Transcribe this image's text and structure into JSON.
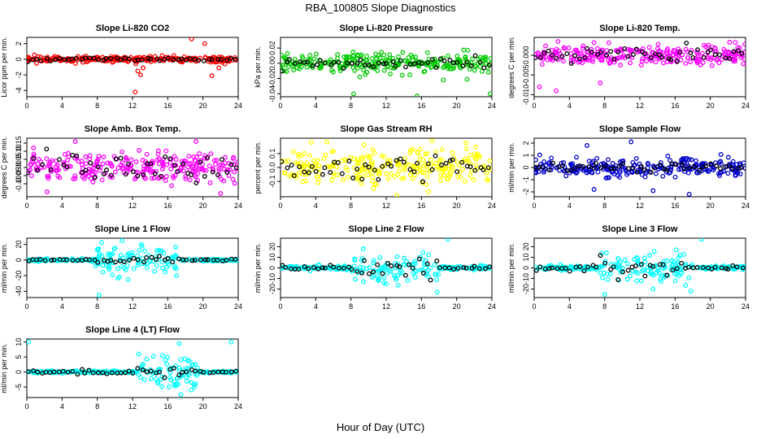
{
  "title": "RBA_100805  Slope Diagnostics",
  "xlabel": "Hour of Day (UTC)",
  "chart_data": [
    {
      "type": "scatter",
      "title": "Slope Li-820 CO2",
      "ylabel": "Licor ppm per min.",
      "xlim": [
        0,
        24
      ],
      "ylim": [
        -4.8,
        2.8
      ],
      "xticks": [
        0,
        4,
        8,
        12,
        16,
        20,
        24
      ],
      "yticks": [
        -4,
        -2,
        0,
        2
      ],
      "ytick_labels": [
        "-4",
        "-2",
        "0",
        "2"
      ],
      "color": "#ff0000",
      "spread": 0.28,
      "outliers": [
        {
          "x": 12.3,
          "y": -4.2
        },
        {
          "x": 12.9,
          "y": -2.0
        },
        {
          "x": 18.7,
          "y": 2.6
        },
        {
          "x": 20.2,
          "y": 2.0
        },
        {
          "x": 21.0,
          "y": -2.1
        },
        {
          "x": 21.8,
          "y": -1.1
        },
        {
          "x": 22.5,
          "y": -0.6
        },
        {
          "x": 12.6,
          "y": -1.5
        },
        {
          "x": 13.2,
          "y": -1.1
        }
      ],
      "black_spread": 0.12
    },
    {
      "type": "scatter",
      "title": "Slope Li-820 Pressure",
      "ylabel": "kPa per min.",
      "xlim": [
        0,
        24
      ],
      "ylim": [
        -0.044,
        0.034
      ],
      "xticks": [
        0,
        4,
        8,
        12,
        16,
        20,
        24
      ],
      "yticks": [
        -0.04,
        -0.02,
        0.0,
        0.02
      ],
      "ytick_labels": [
        "-0.04",
        "-0.02",
        "0.00",
        "0.02"
      ],
      "color": "#00cc00",
      "spread": 0.009,
      "outliers": [
        {
          "x": 8.3,
          "y": -0.04
        },
        {
          "x": 15.5,
          "y": -0.043
        },
        {
          "x": 23.8,
          "y": -0.04
        },
        {
          "x": 18.5,
          "y": -0.022
        },
        {
          "x": 9.0,
          "y": -0.018
        }
      ],
      "black_spread": 0.004
    },
    {
      "type": "scatter",
      "title": "Slope Li-820 Temp.",
      "ylabel": "degrees C per min.",
      "xlim": [
        0,
        24
      ],
      "ylim": [
        -0.0105,
        0.0045
      ],
      "xticks": [
        0,
        4,
        8,
        12,
        16,
        20,
        24
      ],
      "yticks": [
        -0.01,
        -0.005,
        0.0
      ],
      "ytick_labels": [
        "-0.010",
        "-0.005",
        "0.000"
      ],
      "color": "#ff00ff",
      "spread": 0.0018,
      "outliers": [
        {
          "x": 2.5,
          "y": -0.009
        },
        {
          "x": 0.6,
          "y": -0.008
        },
        {
          "x": 7.5,
          "y": -0.007
        },
        {
          "x": 19.3,
          "y": 0.0025
        },
        {
          "x": 20.2,
          "y": 0.002
        }
      ],
      "black_spread": 0.001
    },
    {
      "type": "scatter",
      "title": "Slope Amb. Box Temp.",
      "ylabel": "degrees C per min.",
      "xlim": [
        0,
        24
      ],
      "ylim": [
        -0.18,
        0.18
      ],
      "xticks": [
        0,
        4,
        8,
        12,
        16,
        20,
        24
      ],
      "yticks": [
        -0.1,
        -0.05,
        0.0,
        0.05,
        0.1,
        0.15
      ],
      "ytick_labels": [
        "-0.10",
        "-0.05",
        "0.00",
        "0.05",
        "0.10",
        "0.15"
      ],
      "color": "#ff00ff",
      "spread": 0.06,
      "outliers": [
        {
          "x": 5.5,
          "y": 0.16
        },
        {
          "x": 19.2,
          "y": 0.16
        },
        {
          "x": 22.0,
          "y": -0.16
        },
        {
          "x": 2.3,
          "y": -0.15
        }
      ],
      "black_spread": 0.05
    },
    {
      "type": "scatter",
      "title": "Slope Gas Stream RH",
      "ylabel": "percent per min.",
      "xlim": [
        0,
        24
      ],
      "ylim": [
        -0.21,
        0.21
      ],
      "xticks": [
        0,
        4,
        8,
        12,
        16,
        20,
        24
      ],
      "yticks": [
        -0.1,
        0.0,
        0.1
      ],
      "ytick_labels": [
        "-0.1",
        "0.0",
        "0.1"
      ],
      "color": "#ffff00",
      "spread": 0.08,
      "outliers": [
        {
          "x": 3.5,
          "y": 0.18
        },
        {
          "x": 13.2,
          "y": -0.2
        },
        {
          "x": 17.2,
          "y": 0.19
        }
      ],
      "black_spread": 0.045
    },
    {
      "type": "scatter",
      "title": "Slope Sample Flow",
      "ylabel": "ml/min per min.",
      "xlim": [
        0,
        24
      ],
      "ylim": [
        -2.4,
        2.4
      ],
      "xticks": [
        0,
        4,
        8,
        12,
        16,
        20,
        24
      ],
      "yticks": [
        -2,
        -1,
        0,
        1,
        2
      ],
      "ytick_labels": [
        "-2",
        "-1",
        "0",
        "1",
        "2"
      ],
      "color": "#0000cc",
      "spread": 0.55,
      "outliers": [
        {
          "x": 6.8,
          "y": -1.8
        },
        {
          "x": 11.0,
          "y": 2.1
        },
        {
          "x": 17.6,
          "y": -2.2
        },
        {
          "x": 13.5,
          "y": -1.9
        },
        {
          "x": 6.0,
          "y": 1.8
        }
      ],
      "black_spread": 0.2
    },
    {
      "type": "scatter",
      "title": "Slope Line 1 Flow",
      "ylabel": "ml/min per min.",
      "xlim": [
        0,
        24
      ],
      "ylim": [
        -48,
        28
      ],
      "xticks": [
        0,
        4,
        8,
        12,
        16,
        20,
        24
      ],
      "yticks": [
        -40,
        -20,
        0,
        20
      ],
      "ytick_labels": [
        "-40",
        "-20",
        "0",
        "20"
      ],
      "color": "#00ffff",
      "spread": 1.0,
      "burst": [
        7.8,
        17.5,
        12
      ],
      "outliers": [
        {
          "x": 8.2,
          "y": -45
        },
        {
          "x": 11.5,
          "y": -25
        },
        {
          "x": 10.8,
          "y": 25
        },
        {
          "x": 17.0,
          "y": -20
        },
        {
          "x": 13.0,
          "y": 20
        }
      ],
      "black_spread": 0.6
    },
    {
      "type": "scatter",
      "title": "Slope Line 2 Flow",
      "ylabel": "ml/min per min.",
      "xlim": [
        0,
        24
      ],
      "ylim": [
        -28,
        28
      ],
      "xticks": [
        0,
        4,
        8,
        12,
        16,
        20,
        24
      ],
      "yticks": [
        -20,
        -10,
        0,
        10,
        20
      ],
      "ytick_labels": [
        "-20",
        "-10",
        "0",
        "10",
        "20"
      ],
      "color": "#00ffff",
      "spread": 1.2,
      "burst": [
        8.0,
        18.0,
        9
      ],
      "outliers": [
        {
          "x": 17.8,
          "y": -23
        },
        {
          "x": 19.0,
          "y": 27
        },
        {
          "x": 9.4,
          "y": 18
        },
        {
          "x": 12.0,
          "y": -15
        }
      ],
      "black_spread": 1.0
    },
    {
      "type": "scatter",
      "title": "Slope Line 3 Flow",
      "ylabel": "ml/min per min.",
      "xlim": [
        0,
        24
      ],
      "ylim": [
        -28,
        28
      ],
      "xticks": [
        0,
        4,
        8,
        12,
        16,
        20,
        24
      ],
      "yticks": [
        -20,
        -10,
        0,
        10,
        20
      ],
      "ytick_labels": [
        "-20",
        "-10",
        "0",
        "10",
        "20"
      ],
      "color": "#00ffff",
      "spread": 1.2,
      "burst": [
        7.5,
        18.5,
        10
      ],
      "outliers": [
        {
          "x": 19.0,
          "y": 27
        },
        {
          "x": 17.8,
          "y": -22
        },
        {
          "x": 8.0,
          "y": -25
        },
        {
          "x": 13.5,
          "y": -20
        }
      ],
      "black_spread": 1.2
    },
    {
      "type": "scatter",
      "title": "Slope Line 4 (LT) Flow",
      "ylabel": "ml/min per min.",
      "xlim": [
        0,
        24
      ],
      "ylim": [
        -8.5,
        11
      ],
      "xticks": [
        0,
        4,
        8,
        12,
        16,
        20,
        24
      ],
      "yticks": [
        -5,
        0,
        5,
        10
      ],
      "ytick_labels": [
        "-5",
        "0",
        "5",
        "10"
      ],
      "color": "#00ffff",
      "spread": 0.25,
      "burst": [
        12.5,
        19.5,
        3.5
      ],
      "outliers": [
        {
          "x": 0.2,
          "y": 10
        },
        {
          "x": 17.3,
          "y": 9.5
        },
        {
          "x": 23.2,
          "y": 10
        },
        {
          "x": 17.5,
          "y": -7.5
        },
        {
          "x": 15.4,
          "y": 5.5
        },
        {
          "x": 12.7,
          "y": 6
        }
      ],
      "black_spread": 0.3
    }
  ]
}
